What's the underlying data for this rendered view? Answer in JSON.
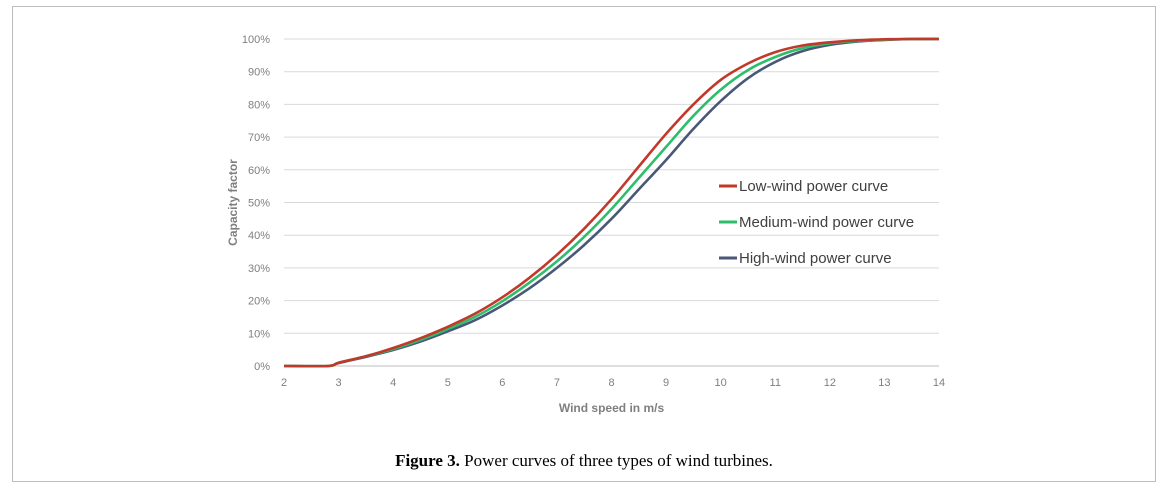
{
  "caption": {
    "label": "Figure 3.",
    "text": "Power curves of three types of wind turbines."
  },
  "chart_data": {
    "type": "line",
    "xlabel": "Wind speed in m/s",
    "ylabel": "Capacity factor",
    "xlim": [
      2,
      14
    ],
    "ylim": [
      0,
      100
    ],
    "xticks": [
      2,
      3,
      4,
      5,
      6,
      7,
      8,
      9,
      10,
      11,
      12,
      13,
      14
    ],
    "yticks": [
      "0%",
      "10%",
      "20%",
      "30%",
      "40%",
      "50%",
      "60%",
      "70%",
      "80%",
      "90%",
      "100%"
    ],
    "grid": "horizontal",
    "legend_position": "right",
    "x": [
      2,
      2.8,
      3,
      3.5,
      4,
      4.5,
      5,
      5.5,
      6,
      6.5,
      7,
      7.5,
      8,
      8.5,
      9,
      9.5,
      10,
      10.5,
      11,
      11.5,
      12,
      12.5,
      13,
      13.5,
      14
    ],
    "series": [
      {
        "name": "Low-wind power curve",
        "color": "#c0392b",
        "values": [
          0,
          0,
          1,
          3,
          5.5,
          8.5,
          12,
          16,
          21,
          27,
          34,
          42,
          51,
          61,
          71,
          80,
          87.5,
          92.5,
          96,
          98,
          99,
          99.6,
          99.9,
          100,
          100
        ]
      },
      {
        "name": "Medium-wind power curve",
        "color": "#2ebd6b",
        "values": [
          0,
          0,
          1,
          3,
          5.2,
          8,
          11.3,
          15,
          19.8,
          25.5,
          32,
          39.5,
          48,
          57.5,
          67,
          76.5,
          84.5,
          90.5,
          94.5,
          97.2,
          98.7,
          99.4,
          99.8,
          100,
          100
        ]
      },
      {
        "name": "High-wind power curve",
        "color": "#4a5878",
        "values": [
          0,
          0,
          0.9,
          2.8,
          4.9,
          7.5,
          10.6,
          14,
          18.5,
          23.8,
          30,
          37,
          45,
          54,
          63,
          72.5,
          81,
          88,
          93,
          96.3,
          98.2,
          99.2,
          99.7,
          100,
          100
        ]
      }
    ]
  }
}
